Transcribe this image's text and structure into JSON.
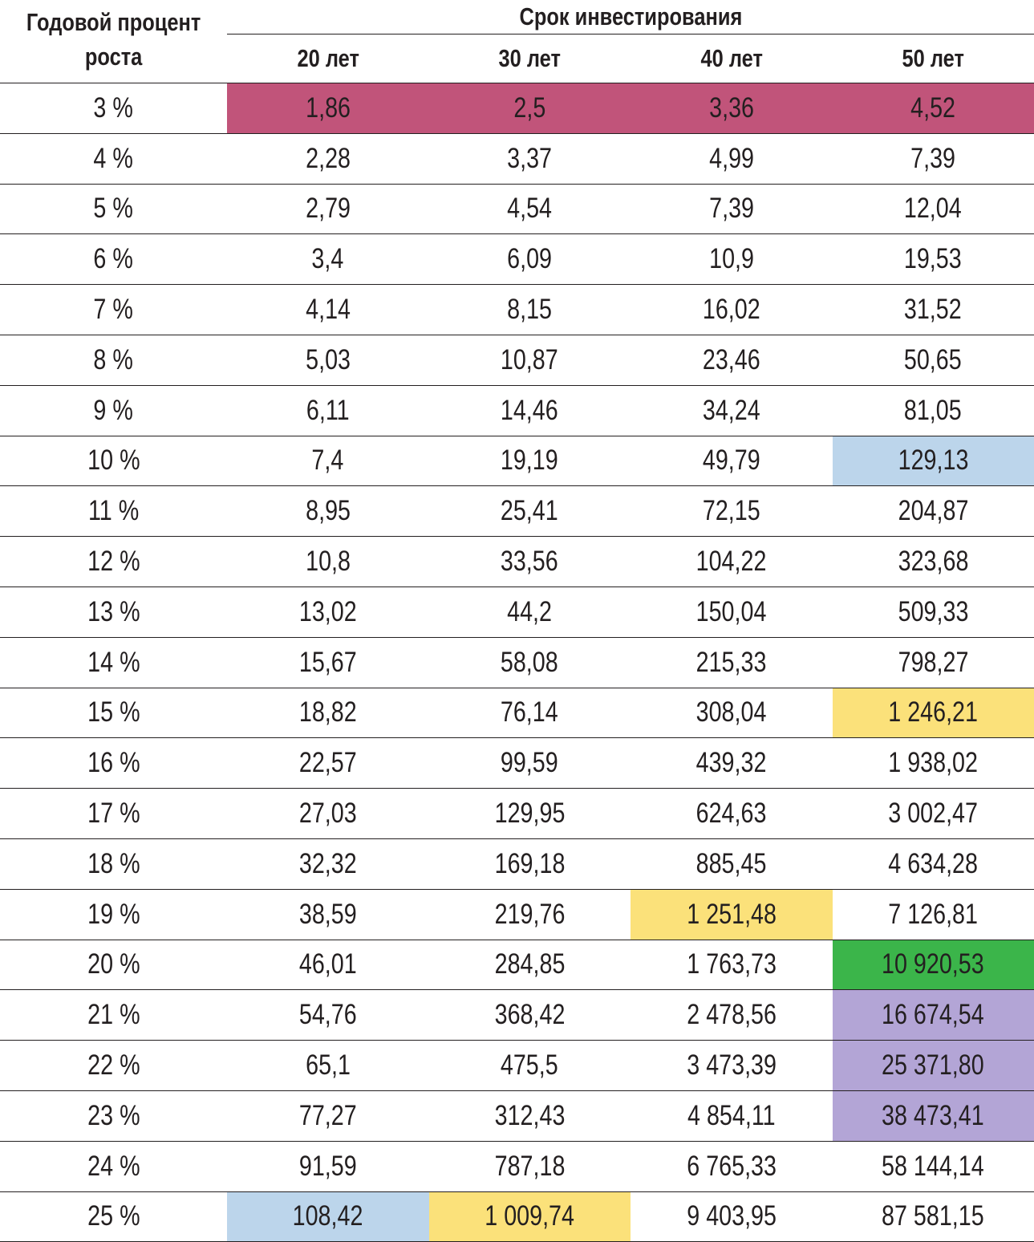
{
  "header": {
    "row_label_line1": "Годовой процент",
    "row_label_line2": "роста",
    "group_label": "Срок инвестирования",
    "columns": [
      "20 лет",
      "30 лет",
      "40 лет",
      "50 лет"
    ]
  },
  "colors": {
    "magenta": "#c1547a",
    "blue": "#bcd5eb",
    "yellow": "#fbe17a",
    "green": "#3bb54a",
    "lavender": "#b3a5d6"
  },
  "rows": [
    {
      "rate": "3 %",
      "values": [
        "1,86",
        "2,5",
        "3,36",
        "4,52"
      ],
      "highlight": [
        "magenta",
        "magenta",
        "magenta",
        "magenta"
      ]
    },
    {
      "rate": "4 %",
      "values": [
        "2,28",
        "3,37",
        "4,99",
        "7,39"
      ],
      "highlight": [
        null,
        null,
        null,
        null
      ]
    },
    {
      "rate": "5 %",
      "values": [
        "2,79",
        "4,54",
        "7,39",
        "12,04"
      ],
      "highlight": [
        null,
        null,
        null,
        null
      ]
    },
    {
      "rate": "6 %",
      "values": [
        "3,4",
        "6,09",
        "10,9",
        "19,53"
      ],
      "highlight": [
        null,
        null,
        null,
        null
      ]
    },
    {
      "rate": "7 %",
      "values": [
        "4,14",
        "8,15",
        "16,02",
        "31,52"
      ],
      "highlight": [
        null,
        null,
        null,
        null
      ]
    },
    {
      "rate": "8 %",
      "values": [
        "5,03",
        "10,87",
        "23,46",
        "50,65"
      ],
      "highlight": [
        null,
        null,
        null,
        null
      ]
    },
    {
      "rate": "9 %",
      "values": [
        "6,11",
        "14,46",
        "34,24",
        "81,05"
      ],
      "highlight": [
        null,
        null,
        null,
        null
      ]
    },
    {
      "rate": "10 %",
      "values": [
        "7,4",
        "19,19",
        "49,79",
        "129,13"
      ],
      "highlight": [
        null,
        null,
        null,
        "blue"
      ]
    },
    {
      "rate": "11 %",
      "values": [
        "8,95",
        "25,41",
        "72,15",
        "204,87"
      ],
      "highlight": [
        null,
        null,
        null,
        null
      ]
    },
    {
      "rate": "12 %",
      "values": [
        "10,8",
        "33,56",
        "104,22",
        "323,68"
      ],
      "highlight": [
        null,
        null,
        null,
        null
      ]
    },
    {
      "rate": "13 %",
      "values": [
        "13,02",
        "44,2",
        "150,04",
        "509,33"
      ],
      "highlight": [
        null,
        null,
        null,
        null
      ]
    },
    {
      "rate": "14 %",
      "values": [
        "15,67",
        "58,08",
        "215,33",
        "798,27"
      ],
      "highlight": [
        null,
        null,
        null,
        null
      ]
    },
    {
      "rate": "15 %",
      "values": [
        "18,82",
        "76,14",
        "308,04",
        "1 246,21"
      ],
      "highlight": [
        null,
        null,
        null,
        "yellow"
      ]
    },
    {
      "rate": "16 %",
      "values": [
        "22,57",
        "99,59",
        "439,32",
        "1 938,02"
      ],
      "highlight": [
        null,
        null,
        null,
        null
      ]
    },
    {
      "rate": "17 %",
      "values": [
        "27,03",
        "129,95",
        "624,63",
        "3 002,47"
      ],
      "highlight": [
        null,
        null,
        null,
        null
      ]
    },
    {
      "rate": "18 %",
      "values": [
        "32,32",
        "169,18",
        "885,45",
        "4 634,28"
      ],
      "highlight": [
        null,
        null,
        null,
        null
      ]
    },
    {
      "rate": "19 %",
      "values": [
        "38,59",
        "219,76",
        "1 251,48",
        "7 126,81"
      ],
      "highlight": [
        null,
        null,
        "yellow",
        null
      ]
    },
    {
      "rate": "20 %",
      "values": [
        "46,01",
        "284,85",
        "1 763,73",
        "10 920,53"
      ],
      "highlight": [
        null,
        null,
        null,
        "green"
      ]
    },
    {
      "rate": "21 %",
      "values": [
        "54,76",
        "368,42",
        "2 478,56",
        "16 674,54"
      ],
      "highlight": [
        null,
        null,
        null,
        "lavender"
      ]
    },
    {
      "rate": "22 %",
      "values": [
        "65,1",
        "475,5",
        "3 473,39",
        "25 371,80"
      ],
      "highlight": [
        null,
        null,
        null,
        "lavender"
      ]
    },
    {
      "rate": "23 %",
      "values": [
        "77,27",
        "312,43",
        "4 854,11",
        "38 473,41"
      ],
      "highlight": [
        null,
        null,
        null,
        "lavender"
      ]
    },
    {
      "rate": "24 %",
      "values": [
        "91,59",
        "787,18",
        "6 765,33",
        "58 144,14"
      ],
      "highlight": [
        null,
        null,
        null,
        null
      ]
    },
    {
      "rate": "25 %",
      "values": [
        "108,42",
        "1 009,74",
        "9 403,95",
        "87 581,15"
      ],
      "highlight": [
        "blue",
        "yellow",
        null,
        null
      ]
    }
  ]
}
